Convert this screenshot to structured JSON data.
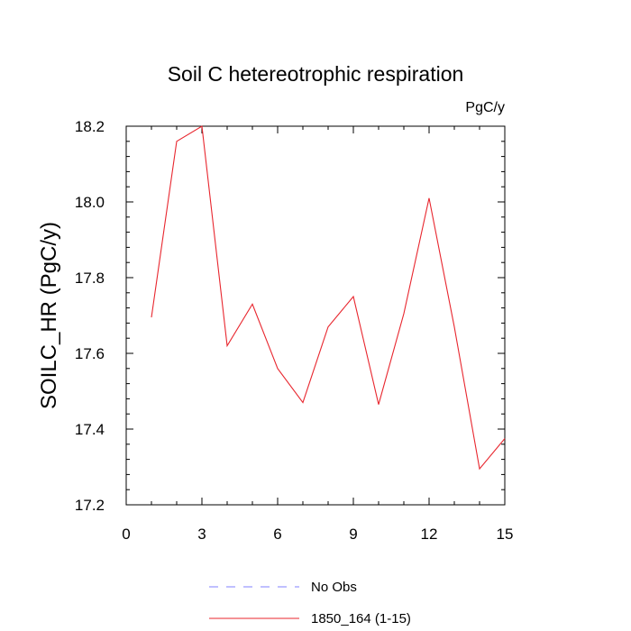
{
  "chart_data": {
    "type": "line",
    "title": "Soil C hetereotrophic respiration",
    "units_label": "PgC/y",
    "ylabel": "SOILC_HR  (PgC/y)",
    "xlabel": "",
    "xlim": [
      0,
      15
    ],
    "ylim": [
      17.2,
      18.2
    ],
    "x_ticks": [
      0,
      3,
      6,
      9,
      12,
      15
    ],
    "x_tick_labels": [
      "0",
      "3",
      "6",
      "9",
      "12",
      "15"
    ],
    "y_ticks": [
      17.2,
      17.4,
      17.6,
      17.8,
      18.0,
      18.2
    ],
    "y_tick_labels": [
      "17.2",
      "17.4",
      "17.6",
      "17.8",
      "18.0",
      "18.2"
    ],
    "grid": false,
    "legend_position": "bottom",
    "series": [
      {
        "name": "1850_164 (1-15)",
        "color": "#e8262e",
        "style": "solid",
        "x": [
          1,
          2,
          3,
          4,
          5,
          6,
          7,
          8,
          9,
          10,
          11,
          12,
          13,
          14,
          15
        ],
        "y": [
          17.695,
          18.16,
          18.2,
          17.62,
          17.73,
          17.56,
          17.47,
          17.67,
          17.75,
          17.465,
          17.705,
          18.01,
          17.67,
          17.295,
          17.375
        ]
      }
    ],
    "legend": [
      {
        "label": "No Obs",
        "color": "#8080ff",
        "style": "dashed"
      },
      {
        "label": "1850_164 (1-15)",
        "color": "#e8262e",
        "style": "solid"
      }
    ]
  }
}
